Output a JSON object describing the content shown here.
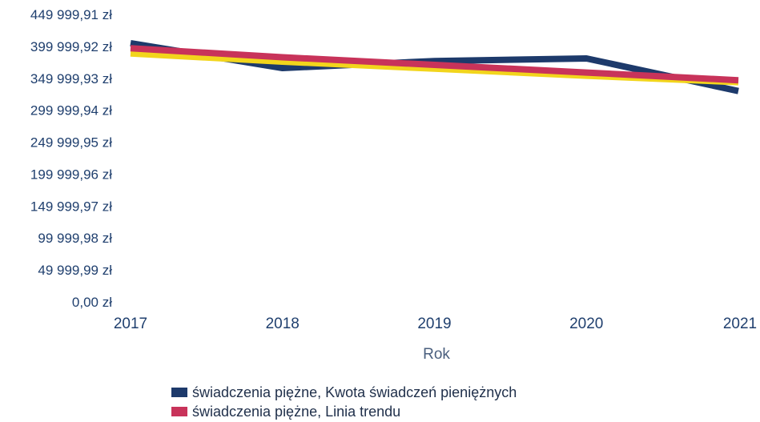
{
  "chart_data": {
    "type": "line",
    "x": [
      "2017",
      "2018",
      "2019",
      "2020",
      "2021"
    ],
    "xlabel": "Rok",
    "ylabel": "",
    "title": "",
    "ylim": [
      0,
      449999.91
    ],
    "yticks": [
      "0,00 zł",
      "49 999,99 zł",
      "99 999,98 zł",
      "149 999,97 zł",
      "199 999,96 zł",
      "249 999,95 zł",
      "299 999,94 zł",
      "349 999,93 zł",
      "399 999,92 zł",
      "449 999,91 zł"
    ],
    "legend_position": "bottom",
    "grid": false,
    "series": [
      {
        "name": "świadczenia piężne, Kwota świadczeń pieniężnych",
        "color": "#1d3a6b",
        "values": [
          405000,
          366000,
          377000,
          381000,
          330000
        ]
      },
      {
        "name": "",
        "color": "#f2d51c",
        "values": [
          389000,
          376000,
          365000,
          354000,
          344000
        ]
      },
      {
        "name": "świadczenia piężne, Linia trendu",
        "color": "#c8335a",
        "values": [
          397000,
          383000,
          371000,
          359000,
          347000
        ]
      }
    ]
  }
}
